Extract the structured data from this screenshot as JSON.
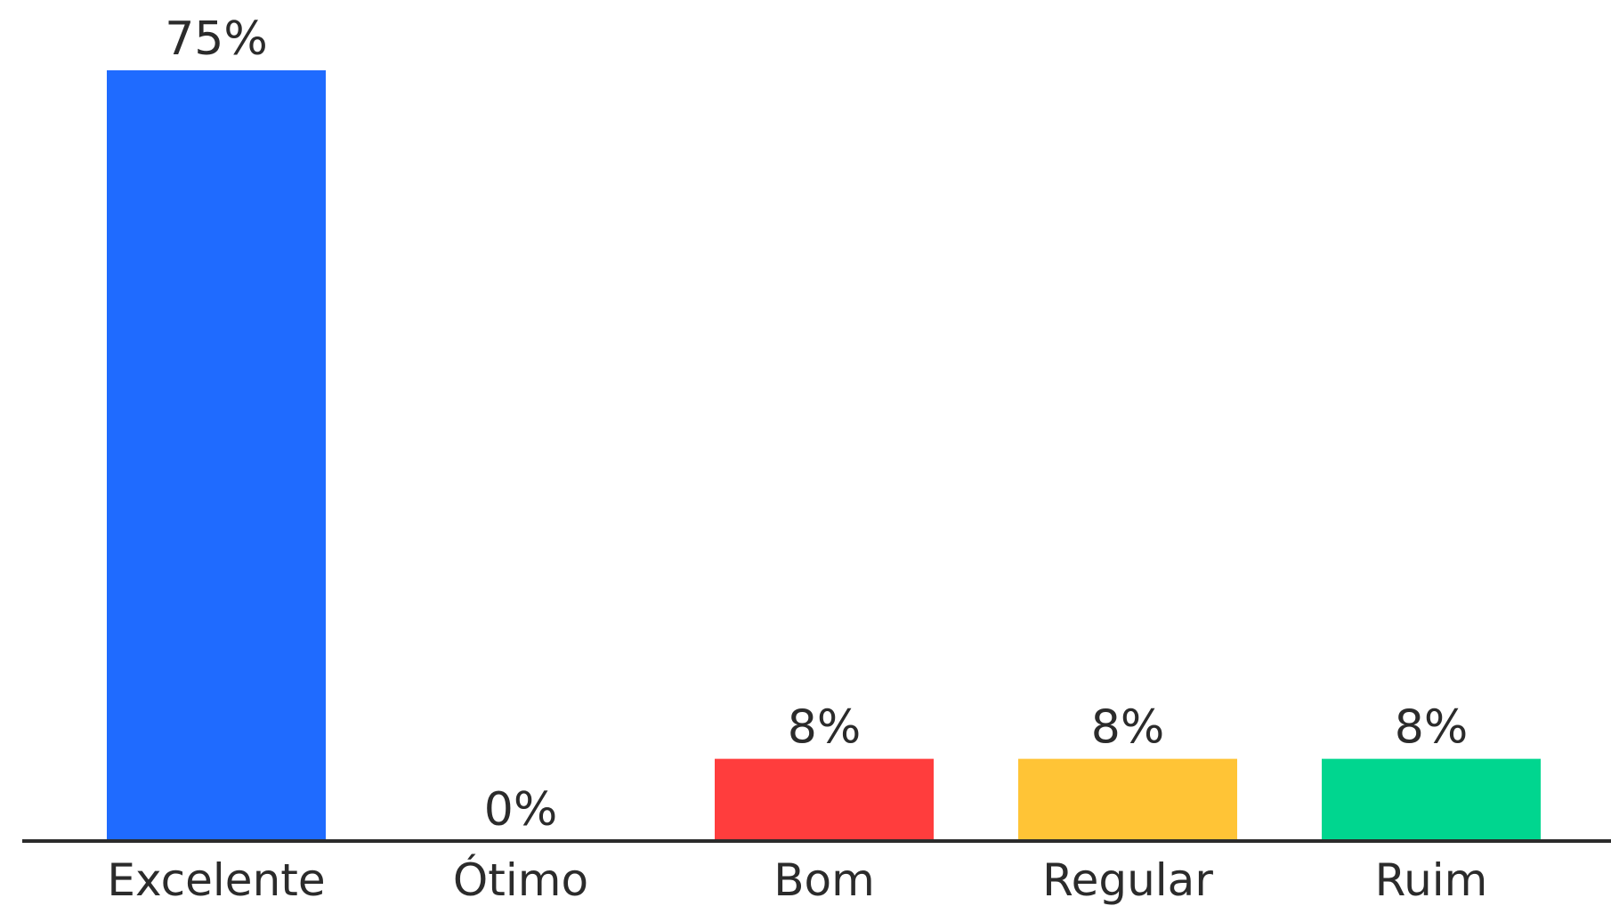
{
  "chart_data": {
    "type": "bar",
    "categories": [
      "Excelente",
      "Ótimo",
      "Bom",
      "Regular",
      "Ruim"
    ],
    "values": [
      75,
      0,
      8,
      8,
      8
    ],
    "value_labels": [
      "75%",
      "0%",
      "8%",
      "8%",
      "8%"
    ],
    "colors": [
      "#1f6bff",
      "#1f6bff",
      "#ff3d3d",
      "#ffc436",
      "#00d68f"
    ],
    "ylim": [
      0,
      75
    ],
    "grid": false,
    "legend": "none",
    "axis_color": "#2b2b2b"
  }
}
